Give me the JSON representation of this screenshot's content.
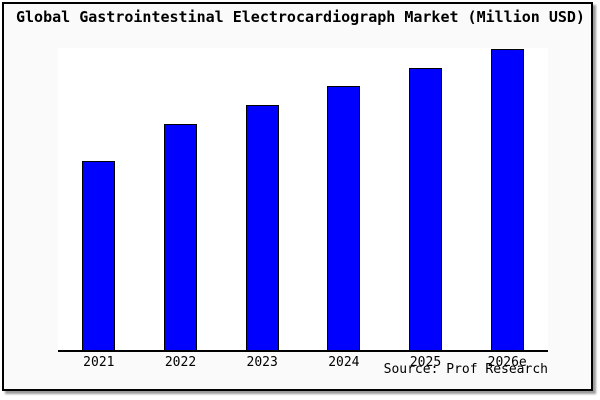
{
  "page": {
    "background_color": "#fafafa",
    "frame_border_color": "#000000"
  },
  "title": "Global Gastrointestinal Electrocardiograph Market (Million USD)",
  "source_credit": "Source: Prof Research",
  "chart_data": {
    "type": "bar",
    "title": "Global Gastrointestinal Electrocardiograph Market (Million USD)",
    "categories": [
      "2021",
      "2022",
      "2023",
      "2024",
      "2025",
      "2026e"
    ],
    "values": [
      188,
      225,
      244,
      263,
      281,
      300
    ],
    "unit": "relative height (no y-axis scale or value labels shown)",
    "ylim": [
      0,
      302
    ],
    "xlabel": "",
    "ylabel": "",
    "grid": false,
    "legend": false,
    "y_axis_visible": false,
    "bar_color": "#0000ff",
    "bar_border_color": "#000000",
    "plot_background": "#ffffff",
    "source": "Source: Prof Research"
  }
}
